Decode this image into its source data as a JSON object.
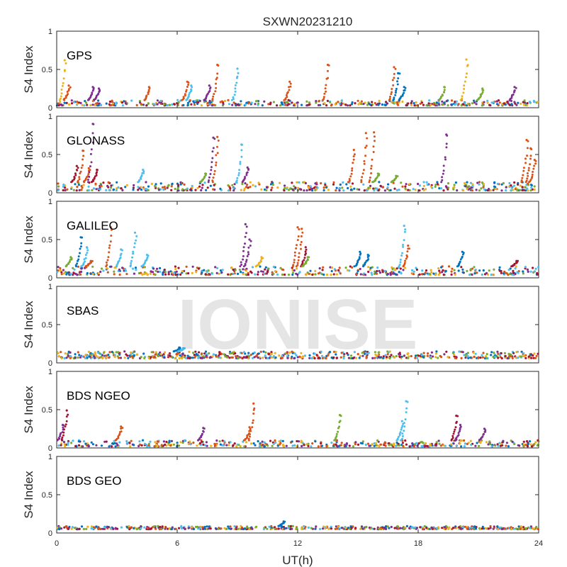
{
  "figure_title": "SXWN20231210",
  "watermark": "IONISE",
  "chart_data": [
    {
      "type": "scatter",
      "title": "GPS",
      "ylabel": "S4 Index",
      "xlim": [
        0,
        24
      ],
      "ylim": [
        0,
        1
      ],
      "yticks": [
        0,
        0.5,
        1
      ],
      "ytick_labels": [
        "0",
        "0.5",
        "1"
      ],
      "baseline": [
        0.03,
        0.1
      ],
      "background_density": 440,
      "peaks": [
        {
          "x": 0.4,
          "y": 0.62,
          "color": "#EDB120"
        },
        {
          "x": 0.6,
          "y": 0.29,
          "color": "#D95319"
        },
        {
          "x": 1.8,
          "y": 0.27,
          "color": "#7E2F8E"
        },
        {
          "x": 2.1,
          "y": 0.25,
          "color": "#7E2F8E"
        },
        {
          "x": 4.6,
          "y": 0.27,
          "color": "#D95319"
        },
        {
          "x": 6.5,
          "y": 0.34,
          "color": "#D95319"
        },
        {
          "x": 6.7,
          "y": 0.29,
          "color": "#4DBEEE"
        },
        {
          "x": 7.6,
          "y": 0.29,
          "color": "#7E2F8E"
        },
        {
          "x": 8.0,
          "y": 0.56,
          "color": "#D95319"
        },
        {
          "x": 9.0,
          "y": 0.51,
          "color": "#4DBEEE"
        },
        {
          "x": 11.6,
          "y": 0.34,
          "color": "#D95319"
        },
        {
          "x": 13.5,
          "y": 0.56,
          "color": "#D95319"
        },
        {
          "x": 16.8,
          "y": 0.53,
          "color": "#D95319"
        },
        {
          "x": 17.0,
          "y": 0.45,
          "color": "#0072BD"
        },
        {
          "x": 17.3,
          "y": 0.27,
          "color": "#0072BD"
        },
        {
          "x": 19.3,
          "y": 0.27,
          "color": "#77AC30"
        },
        {
          "x": 20.4,
          "y": 0.63,
          "color": "#EDB120"
        },
        {
          "x": 21.2,
          "y": 0.25,
          "color": "#77AC30"
        },
        {
          "x": 22.8,
          "y": 0.27,
          "color": "#7E2F8E"
        }
      ]
    },
    {
      "type": "scatter",
      "title": "GLONASS",
      "ylabel": "S4 Index",
      "xlim": [
        0,
        24
      ],
      "ylim": [
        0,
        1
      ],
      "yticks": [
        0,
        0.5,
        1
      ],
      "ytick_labels": [
        "0",
        "0.5",
        "1"
      ],
      "baseline": [
        0.03,
        0.14
      ],
      "background_density": 440,
      "peaks": [
        {
          "x": 1.0,
          "y": 0.35,
          "color": "#A2142F"
        },
        {
          "x": 1.3,
          "y": 0.55,
          "color": "#D95319"
        },
        {
          "x": 1.6,
          "y": 0.32,
          "color": "#D95319"
        },
        {
          "x": 1.8,
          "y": 0.9,
          "color": "#7E2F8E"
        },
        {
          "x": 2.0,
          "y": 0.3,
          "color": "#A2142F"
        },
        {
          "x": 4.3,
          "y": 0.3,
          "color": "#4DBEEE"
        },
        {
          "x": 7.4,
          "y": 0.25,
          "color": "#77AC30"
        },
        {
          "x": 7.8,
          "y": 0.72,
          "color": "#7E2F8E"
        },
        {
          "x": 8.0,
          "y": 0.73,
          "color": "#D95319"
        },
        {
          "x": 9.2,
          "y": 0.63,
          "color": "#4DBEEE"
        },
        {
          "x": 9.5,
          "y": 0.33,
          "color": "#7E2F8E"
        },
        {
          "x": 14.8,
          "y": 0.56,
          "color": "#D95319"
        },
        {
          "x": 15.4,
          "y": 0.78,
          "color": "#D95319"
        },
        {
          "x": 15.8,
          "y": 0.79,
          "color": "#D95319"
        },
        {
          "x": 16.0,
          "y": 0.25,
          "color": "#77AC30"
        },
        {
          "x": 16.9,
          "y": 0.22,
          "color": "#77AC30"
        },
        {
          "x": 19.4,
          "y": 0.76,
          "color": "#7E2F8E"
        },
        {
          "x": 23.4,
          "y": 0.69,
          "color": "#D95319"
        },
        {
          "x": 23.6,
          "y": 0.58,
          "color": "#D95319"
        },
        {
          "x": 23.8,
          "y": 0.43,
          "color": "#D95319"
        }
      ]
    },
    {
      "type": "scatter",
      "title": "GALILEO",
      "ylabel": "S4 Index",
      "xlim": [
        0,
        24
      ],
      "ylim": [
        0,
        1
      ],
      "yticks": [
        0,
        0.5,
        1
      ],
      "ytick_labels": [
        "0",
        "0.5",
        "1"
      ],
      "baseline": [
        0.04,
        0.15
      ],
      "background_density": 440,
      "peaks": [
        {
          "x": 0.7,
          "y": 0.27,
          "color": "#77AC30"
        },
        {
          "x": 1.2,
          "y": 0.53,
          "color": "#0072BD"
        },
        {
          "x": 1.5,
          "y": 0.4,
          "color": "#4DBEEE"
        },
        {
          "x": 1.7,
          "y": 0.22,
          "color": "#D95319"
        },
        {
          "x": 2.7,
          "y": 0.66,
          "color": "#D95319"
        },
        {
          "x": 3.2,
          "y": 0.37,
          "color": "#4DBEEE"
        },
        {
          "x": 3.9,
          "y": 0.59,
          "color": "#4DBEEE"
        },
        {
          "x": 4.5,
          "y": 0.3,
          "color": "#4DBEEE"
        },
        {
          "x": 9.4,
          "y": 0.7,
          "color": "#7E2F8E"
        },
        {
          "x": 9.6,
          "y": 0.5,
          "color": "#7E2F8E"
        },
        {
          "x": 10.2,
          "y": 0.27,
          "color": "#EDB120"
        },
        {
          "x": 12.0,
          "y": 0.66,
          "color": "#D95319"
        },
        {
          "x": 12.2,
          "y": 0.64,
          "color": "#D95319"
        },
        {
          "x": 12.4,
          "y": 0.4,
          "color": "#A2142F"
        },
        {
          "x": 12.5,
          "y": 0.27,
          "color": "#77AC30"
        },
        {
          "x": 15.1,
          "y": 0.34,
          "color": "#0072BD"
        },
        {
          "x": 15.5,
          "y": 0.3,
          "color": "#0072BD"
        },
        {
          "x": 17.3,
          "y": 0.68,
          "color": "#4DBEEE"
        },
        {
          "x": 17.5,
          "y": 0.42,
          "color": "#D95319"
        },
        {
          "x": 20.2,
          "y": 0.34,
          "color": "#0072BD"
        },
        {
          "x": 22.9,
          "y": 0.22,
          "color": "#A2142F"
        }
      ]
    },
    {
      "type": "scatter",
      "title": "SBAS",
      "ylabel": "S4 Index",
      "xlim": [
        0,
        24
      ],
      "ylim": [
        0,
        1
      ],
      "yticks": [
        0,
        0.5,
        1
      ],
      "ytick_labels": [
        "0",
        "0.5",
        "1"
      ],
      "baseline": [
        0.06,
        0.15
      ],
      "background_density": 620,
      "peaks": [
        {
          "x": 6.1,
          "y": 0.2,
          "color": "#0072BD"
        },
        {
          "x": 6.3,
          "y": 0.19,
          "color": "#4DBEEE"
        }
      ]
    },
    {
      "type": "scatter",
      "title": "BDS NGEO",
      "ylabel": "S4 Index",
      "xlim": [
        0,
        24
      ],
      "ylim": [
        0,
        1
      ],
      "yticks": [
        0,
        0.5,
        1
      ],
      "ytick_labels": [
        "0",
        "0.5",
        "1"
      ],
      "baseline": [
        0.02,
        0.1
      ],
      "background_density": 440,
      "peaks": [
        {
          "x": 0.3,
          "y": 0.3,
          "color": "#7E2F8E"
        },
        {
          "x": 0.5,
          "y": 0.49,
          "color": "#A2142F"
        },
        {
          "x": 3.2,
          "y": 0.28,
          "color": "#D95319"
        },
        {
          "x": 7.3,
          "y": 0.26,
          "color": "#7E2F8E"
        },
        {
          "x": 9.8,
          "y": 0.58,
          "color": "#D95319"
        },
        {
          "x": 9.6,
          "y": 0.27,
          "color": "#D95319"
        },
        {
          "x": 14.1,
          "y": 0.43,
          "color": "#77AC30"
        },
        {
          "x": 17.4,
          "y": 0.61,
          "color": "#4DBEEE"
        },
        {
          "x": 17.2,
          "y": 0.35,
          "color": "#4DBEEE"
        },
        {
          "x": 19.9,
          "y": 0.42,
          "color": "#A2142F"
        },
        {
          "x": 20.1,
          "y": 0.3,
          "color": "#7E2F8E"
        },
        {
          "x": 21.3,
          "y": 0.25,
          "color": "#7E2F8E"
        }
      ]
    },
    {
      "type": "scatter",
      "title": "BDS GEO",
      "ylabel": "S4 Index",
      "xlabel": "UT(h)",
      "xlim": [
        0,
        24
      ],
      "ylim": [
        0,
        1
      ],
      "yticks": [
        0,
        0.5,
        1
      ],
      "ytick_labels": [
        "0",
        "0.5",
        "1"
      ],
      "xticks": [
        0,
        6,
        12,
        18,
        24
      ],
      "xtick_labels": [
        "0",
        "6",
        "12",
        "18",
        "24"
      ],
      "baseline": [
        0.05,
        0.09
      ],
      "background_density": 520,
      "peaks": [
        {
          "x": 11.3,
          "y": 0.15,
          "color": "#0072BD"
        }
      ]
    }
  ],
  "series_colors": [
    "#0072BD",
    "#D95319",
    "#EDB120",
    "#7E2F8E",
    "#77AC30",
    "#4DBEEE",
    "#A2142F"
  ]
}
